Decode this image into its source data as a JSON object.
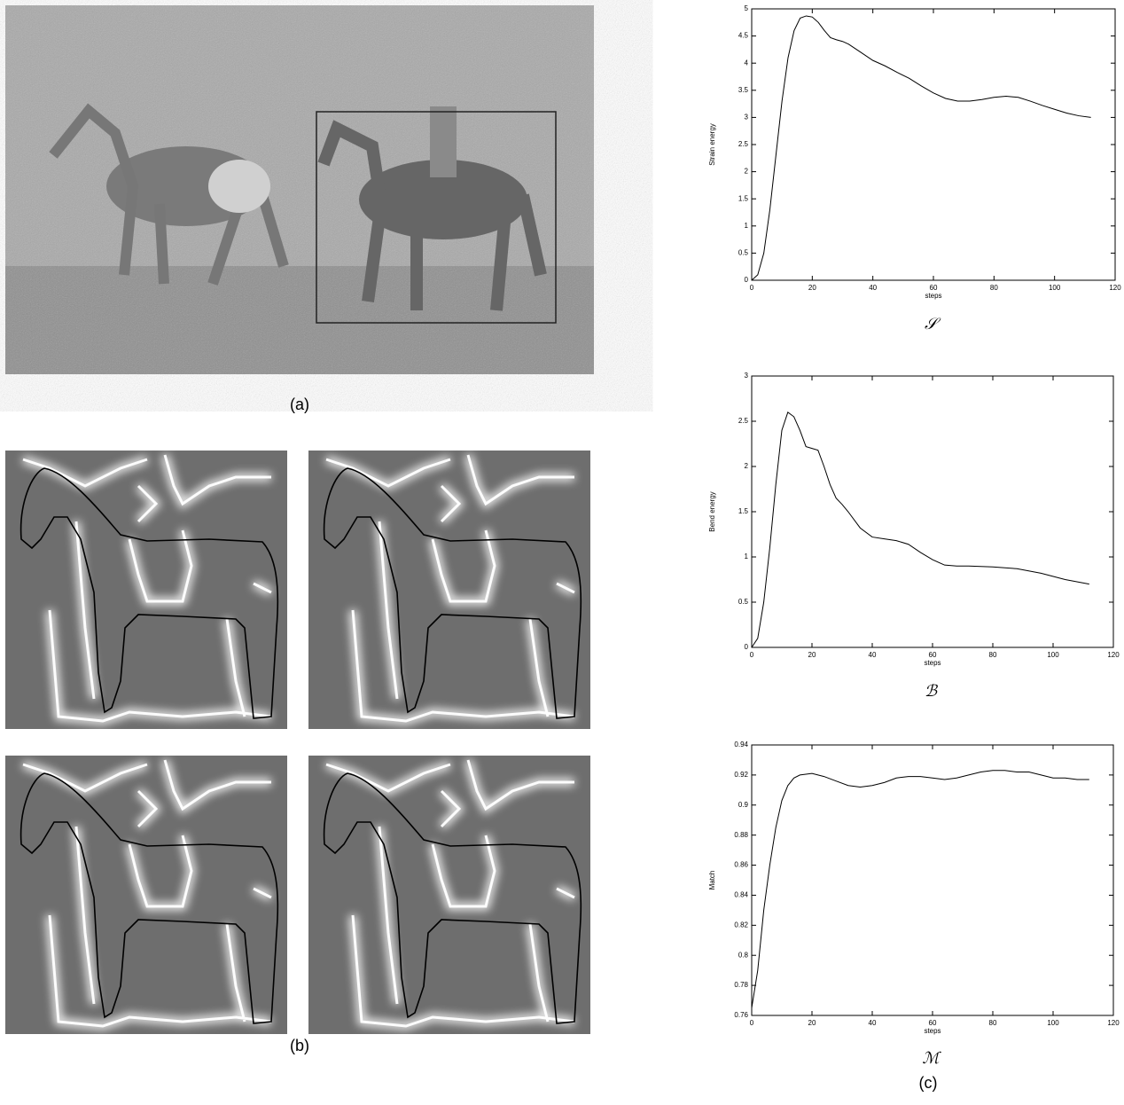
{
  "panel_labels": [
    "(a)",
    "(b)",
    "(c)"
  ],
  "chart_data": [
    {
      "type": "line",
      "y_label": "Strain energy",
      "x_label": "steps",
      "caption": "𝒮",
      "x": [
        0,
        2,
        4,
        6,
        8,
        10,
        12,
        14,
        16,
        18,
        20,
        22,
        24,
        26,
        28,
        30,
        32,
        36,
        40,
        44,
        48,
        52,
        56,
        60,
        64,
        68,
        72,
        76,
        80,
        84,
        88,
        92,
        96,
        100,
        104,
        108,
        112
      ],
      "values": [
        0,
        0.1,
        0.5,
        1.3,
        2.3,
        3.3,
        4.1,
        4.6,
        4.83,
        4.87,
        4.85,
        4.75,
        4.6,
        4.47,
        4.43,
        4.4,
        4.35,
        4.2,
        4.05,
        3.95,
        3.83,
        3.72,
        3.58,
        3.45,
        3.35,
        3.3,
        3.3,
        3.33,
        3.37,
        3.39,
        3.37,
        3.3,
        3.22,
        3.15,
        3.08,
        3.03,
        3.0
      ],
      "color": "#000000",
      "xlim": [
        0,
        120
      ],
      "xticks": [
        0,
        20,
        40,
        60,
        80,
        100,
        120
      ],
      "ylim": [
        0,
        5
      ],
      "yticks": [
        0,
        0.5,
        1,
        1.5,
        2,
        2.5,
        3,
        3.5,
        4,
        4.5,
        5
      ]
    },
    {
      "type": "line",
      "y_label": "Bend energy",
      "x_label": "steps",
      "caption": "ℬ",
      "x": [
        0,
        2,
        4,
        6,
        8,
        10,
        12,
        14,
        16,
        18,
        20,
        22,
        24,
        26,
        28,
        30,
        32,
        36,
        40,
        44,
        48,
        52,
        56,
        60,
        64,
        68,
        72,
        80,
        88,
        96,
        104,
        112
      ],
      "values": [
        0,
        0.1,
        0.5,
        1.1,
        1.8,
        2.4,
        2.6,
        2.55,
        2.4,
        2.22,
        2.2,
        2.18,
        2.0,
        1.8,
        1.65,
        1.58,
        1.5,
        1.32,
        1.22,
        1.2,
        1.18,
        1.14,
        1.05,
        0.97,
        0.91,
        0.9,
        0.9,
        0.89,
        0.87,
        0.82,
        0.75,
        0.7
      ],
      "color": "#000000",
      "xlim": [
        0,
        120
      ],
      "xticks": [
        0,
        20,
        40,
        60,
        80,
        100,
        120
      ],
      "ylim": [
        0,
        3
      ],
      "yticks": [
        0,
        0.5,
        1,
        1.5,
        2,
        2.5,
        3
      ]
    },
    {
      "type": "line",
      "y_label": "Match",
      "x_label": "steps",
      "caption": "ℳ",
      "x": [
        0,
        2,
        4,
        6,
        8,
        10,
        12,
        14,
        16,
        20,
        24,
        28,
        32,
        36,
        40,
        44,
        48,
        52,
        56,
        60,
        64,
        68,
        72,
        76,
        80,
        84,
        88,
        92,
        96,
        100,
        104,
        108,
        112
      ],
      "values": [
        0.765,
        0.79,
        0.83,
        0.86,
        0.885,
        0.903,
        0.913,
        0.918,
        0.92,
        0.921,
        0.919,
        0.916,
        0.913,
        0.912,
        0.913,
        0.915,
        0.918,
        0.919,
        0.919,
        0.918,
        0.917,
        0.918,
        0.92,
        0.922,
        0.923,
        0.923,
        0.922,
        0.922,
        0.92,
        0.918,
        0.918,
        0.917,
        0.917
      ],
      "color": "#000000",
      "xlim": [
        0,
        120
      ],
      "xticks": [
        0,
        20,
        40,
        60,
        80,
        100,
        120
      ],
      "ylim": [
        0.76,
        0.94
      ],
      "yticks": [
        0.76,
        0.78,
        0.8,
        0.82,
        0.84,
        0.86,
        0.88,
        0.9,
        0.92,
        0.94
      ]
    }
  ]
}
